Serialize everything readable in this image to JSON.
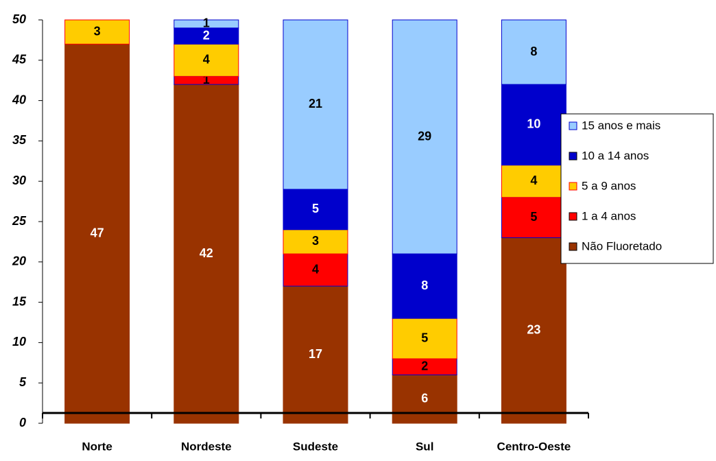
{
  "chart_data": {
    "type": "stacked-bar",
    "categories": [
      "Norte",
      "Nordeste",
      "Sudeste",
      "Sul",
      "Centro-Oeste"
    ],
    "series": [
      {
        "name": "Não Fluoretado",
        "color": "#993300",
        "label_color": "#ffffff",
        "values": [
          47,
          42,
          17,
          6,
          23
        ]
      },
      {
        "name": "1 a 4 anos",
        "color": "#ff0000",
        "label_color": "#000000",
        "values": [
          0,
          1,
          4,
          2,
          5
        ]
      },
      {
        "name": "5 a 9 anos",
        "color": "#ffcc00",
        "label_color": "#000000",
        "values": [
          3,
          4,
          3,
          5,
          4
        ]
      },
      {
        "name": "10 a 14 anos",
        "color": "#0000cc",
        "label_color": "#ffffff",
        "values": [
          0,
          2,
          5,
          8,
          10
        ]
      },
      {
        "name": "15 anos e mais",
        "color": "#99ccff",
        "label_color": "#000000",
        "values": [
          0,
          1,
          21,
          29,
          8
        ]
      }
    ],
    "ylim": [
      0,
      50
    ],
    "yticks": [
      0,
      5,
      10,
      15,
      20,
      25,
      30,
      35,
      40,
      45,
      50
    ],
    "legend": "right"
  }
}
